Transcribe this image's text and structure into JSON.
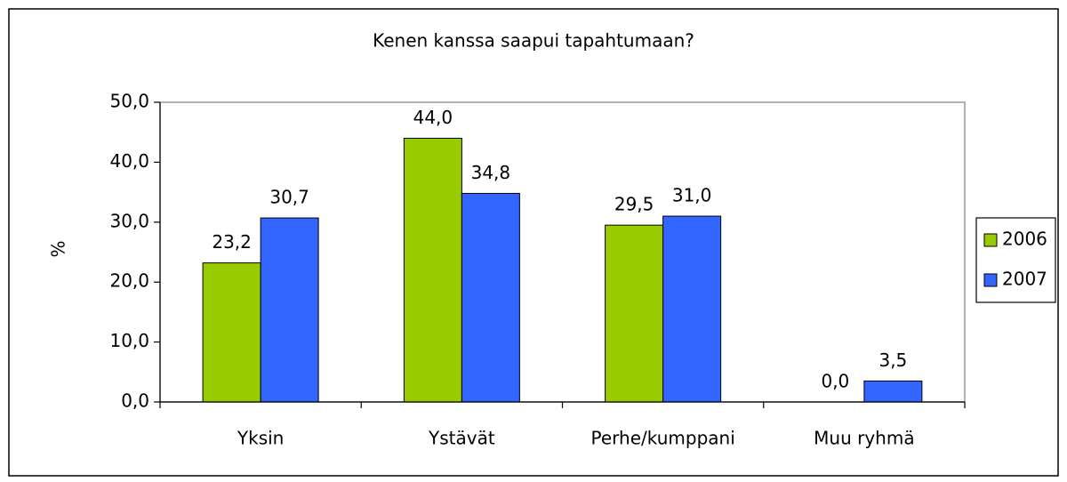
{
  "chart_data": {
    "type": "bar",
    "title": "Kenen kanssa saapui tapahtumaan?",
    "ylabel": "%",
    "categories": [
      "Yksin",
      "Ystävät",
      "Perhe/kumppani",
      "Muu ryhmä"
    ],
    "series": [
      {
        "name": "2006",
        "color": "#99cc00",
        "values": [
          23.2,
          44.0,
          29.5,
          0.0
        ],
        "value_labels": [
          "23,2",
          "44,0",
          "29,5",
          "0,0"
        ]
      },
      {
        "name": "2007",
        "color": "#3366ff",
        "values": [
          30.7,
          34.8,
          31.0,
          3.5
        ],
        "value_labels": [
          "30,7",
          "34,8",
          "31,0",
          "3,5"
        ]
      }
    ],
    "ylim": [
      0,
      50
    ],
    "yticks": [
      {
        "value": 0,
        "label": "0,0"
      },
      {
        "value": 10,
        "label": "10,0"
      },
      {
        "value": 20,
        "label": "20,0"
      },
      {
        "value": 30,
        "label": "30,0"
      },
      {
        "value": 40,
        "label": "40,0"
      },
      {
        "value": 50,
        "label": "50,0"
      }
    ],
    "grid": false,
    "legend": "right"
  }
}
